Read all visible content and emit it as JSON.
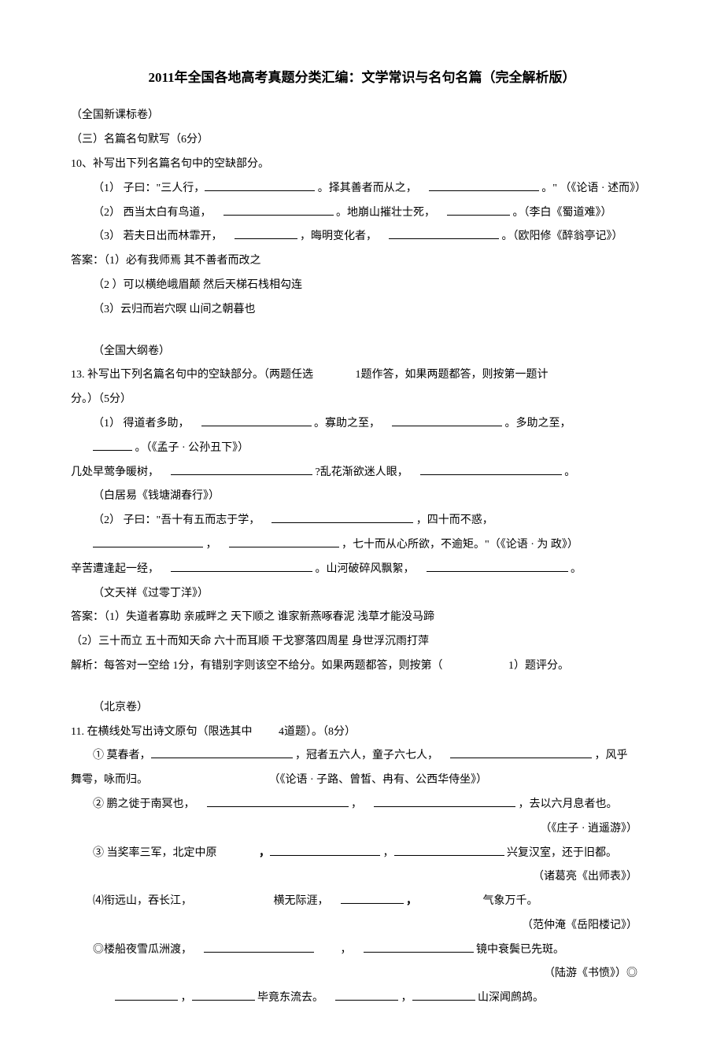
{
  "title": "2011年全国各地高考真题分类汇编：文学常识与名句名篇（完全解析版）",
  "sec1": {
    "header": "（全国新课标卷）",
    "sub": "（三）名篇名句默写（6分）",
    "q": "10、补写出下列名篇名句中的空缺部分。",
    "i1a": "（1）  子曰：\"三人行，",
    "i1b": "。择其善者而从之，",
    "i1c": "。\"  （《论语 · 述而》）",
    "i2a": "（2）  西当太白有鸟道，",
    "i2b": "。地崩山摧壮士死，",
    "i2c": "。（李白《蜀道难》）",
    "i3a": "（3）  若夫日出而林霏开，",
    "i3b": "，晦明变化者，",
    "i3c": "。（欧阳修《醉翁亭记》）",
    "ans": "答案：（1）必有我师焉  其不善者而改之",
    "ans2": "（2  ）可以横绝峨眉颠        然后天梯石栈相勾连",
    "ans3": "（3）云归而岩穴暝         山间之朝暮也"
  },
  "sec2": {
    "header": "（全国大纲卷）",
    "q1": "13. 补写出下列名篇名句中的空缺部分。（两题任选",
    "q2": "1题作答，如果两题都答，则按第一题计",
    "q3": "分。）（5分）",
    "i1a": "（1）  得道者多助，",
    "i1b": "。寡助之至，",
    "i1c": "。多助之至，",
    "i1d": "。（《孟子 · 公孙丑下》）",
    "i1e": "几处早莺争暖树，",
    "i1f": "?乱花渐欲迷人眼，",
    "i1g": "。",
    "i1h": "（白居易《钱塘湖春行》）",
    "i2a": "（2）  子曰：\"吾十有五而志于学，",
    "i2b": "，四十而不惑，",
    "i2c": "，",
    "i2d": "，七十而从心所欲，不逾矩。\"（《论语 · 为  政》）",
    "i2e": "辛苦遭逢起一经，",
    "i2f": "。山河破碎风飘絮，",
    "i2g": "。",
    "i2h": "（文天祥《过零丁洋》）",
    "ans1": "答案：（1）失道者寡助         亲戚畔之         天下顺之         谁家新燕啄春泥           浅草才能没马蹄",
    "ans2": "（2）三十而立        五十而知天命        六十而耳顺           干戈寥落四周星          身世浮沉雨打萍",
    "expl1": "解析：每答对一空给 1分，有错别字则该空不给分。如果两题都答，则按第（",
    "expl2": "1）题评分。"
  },
  "sec3": {
    "header": "（北京卷）",
    "q1": "11. 在横线处写出诗文原句（限选其中",
    "q2": "4道题）。（8分）",
    "i1a": "①  莫春者，",
    "i1b": "，冠者五六人，童子六七人，",
    "i1c": "，风乎",
    "i1d": "舞雩，咏而归。",
    "i1e": "（《论语 · 子路、曾皙、冉有、公西华侍坐》）",
    "i2a": "②  鹏之徙于南冥也，",
    "i2b": "，",
    "i2c": "，去以六月息者也。",
    "i2d": "（《庄子 · 逍遥游》）",
    "i3a": "③  当奖率三军，北定中原",
    "i3b": "，",
    "i3c": "，",
    "i3d": "  兴复汉室，还于旧都。",
    "i3e": "（诸葛亮《出师表》）",
    "i4a": "⑷衔远山，吞长江，",
    "i4b": "横无际涯，",
    "i4c": "，",
    "i4d": "气象万千。",
    "i4e": "（范仲淹《岳阳楼记》）",
    "i5a": "◎楼船夜雪瓜洲渡，",
    "i5b": "，",
    "i5c": "  镜中衰鬓已先斑。",
    "i5d": "（陆游《书愤》）◎",
    "i6a": "，",
    "i6b": "  毕竟东流去。",
    "i6c": "，",
    "i6d": "  山深闻鹧鸪。"
  }
}
